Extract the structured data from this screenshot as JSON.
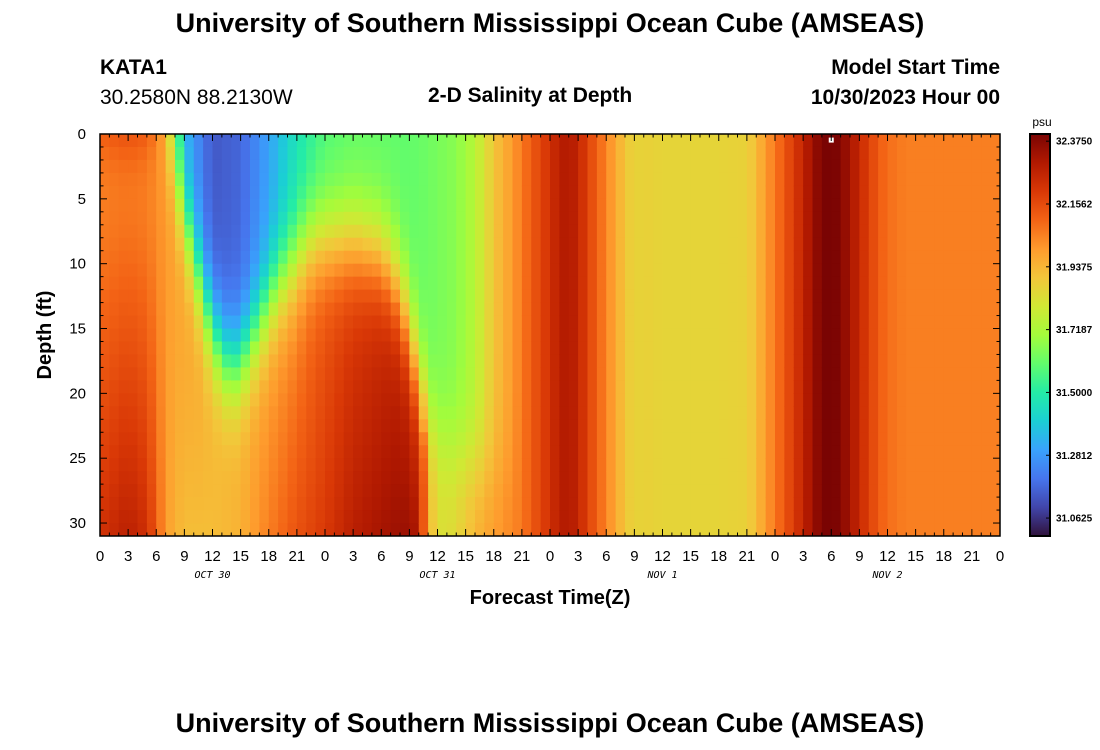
{
  "page": {
    "title": "University of Southern Mississippi Ocean Cube (AMSEAS)",
    "title_repeat": "University of Southern Mississippi Ocean Cube (AMSEAS)",
    "station_id": "KATA1",
    "station_coords": "30.2580N  88.2130W",
    "chart_heading": "2-D Salinity at Depth",
    "model_start_label": "Model Start Time",
    "model_start_value": "10/30/2023 Hour 00"
  },
  "colors": {
    "colormap": [
      "#30123b",
      "#4145ab",
      "#4675ed",
      "#39a2fc",
      "#1bcfd4",
      "#24eca6",
      "#61fc6c",
      "#a4fc3b",
      "#d1e834",
      "#f3c63a",
      "#fe9b2d",
      "#f36315",
      "#d93806",
      "#b11901",
      "#7a0403"
    ],
    "marker": "#ffffff"
  },
  "chart_data": {
    "type": "heatmap",
    "title": "2-D Salinity at Depth",
    "xlabel": "Forecast Time(Z)",
    "ylabel": "Depth (ft)",
    "x_unit": "hours since model start",
    "x_range": [
      0,
      96
    ],
    "x_ticks": [
      0,
      3,
      6,
      9,
      12,
      15,
      18,
      21,
      24,
      27,
      30,
      33,
      36,
      39,
      42,
      45,
      48,
      51,
      54,
      57,
      60,
      63,
      66,
      69,
      72,
      75,
      78,
      81,
      84,
      87,
      90,
      93,
      96
    ],
    "x_tick_labels": [
      "0",
      "3",
      "6",
      "9",
      "12",
      "15",
      "18",
      "21",
      "0",
      "3",
      "6",
      "9",
      "12",
      "15",
      "18",
      "21",
      "0",
      "3",
      "6",
      "9",
      "12",
      "15",
      "18",
      "21",
      "0",
      "3",
      "6",
      "9",
      "12",
      "15",
      "18",
      "21",
      "0"
    ],
    "day_labels": [
      {
        "hour": 12,
        "text": "OCT 30"
      },
      {
        "hour": 36,
        "text": "OCT 31"
      },
      {
        "hour": 60,
        "text": "NOV 1"
      },
      {
        "hour": 84,
        "text": "NOV 2"
      }
    ],
    "y_range": [
      0,
      31
    ],
    "y_ticks": [
      0,
      5,
      10,
      15,
      20,
      25,
      30
    ],
    "colorbar": {
      "unit": "psu",
      "vmin": 31.0,
      "vmax": 32.4,
      "ticks": [
        32.375,
        32.1562,
        31.9375,
        31.7187,
        31.5,
        31.2812,
        31.0625
      ],
      "tick_labels": [
        "32.3750",
        "32.1562",
        "31.9375",
        "31.7187",
        "31.5000",
        "31.2812",
        "31.0625"
      ]
    },
    "marker": {
      "hour": 78,
      "depth": 0.2
    },
    "surface_profile": {
      "hours": [
        0,
        3,
        5,
        6,
        7,
        7.5,
        9,
        12,
        15,
        18,
        21,
        24,
        27,
        30,
        33,
        35,
        38,
        40,
        42,
        44,
        45,
        46,
        48,
        49,
        50,
        51,
        52,
        54,
        56,
        57,
        58,
        60,
        63,
        66,
        69,
        70,
        71,
        72,
        73,
        75,
        76,
        77,
        78,
        79,
        80,
        81,
        83,
        84,
        86,
        90,
        96
      ],
      "values": [
        32.22,
        32.28,
        32.23,
        32.1,
        31.92,
        31.75,
        31.33,
        31.14,
        31.17,
        31.3,
        31.46,
        31.57,
        31.6,
        31.6,
        31.6,
        31.62,
        31.66,
        31.74,
        31.9,
        32.0,
        32.06,
        32.12,
        32.22,
        32.28,
        32.3,
        32.26,
        32.18,
        32.04,
        31.9,
        31.86,
        31.87,
        31.86,
        31.86,
        31.86,
        31.87,
        31.92,
        32.0,
        32.06,
        32.13,
        32.26,
        32.34,
        32.39,
        32.41,
        32.38,
        32.32,
        32.25,
        32.12,
        32.08,
        32.05,
        32.05,
        32.05
      ]
    },
    "bottom_profile": {
      "hours": [
        0,
        3,
        5,
        6,
        7,
        8,
        9,
        12,
        15,
        18,
        21,
        24,
        27,
        30,
        32,
        33,
        34,
        35,
        36,
        37,
        38,
        39,
        40,
        42,
        44,
        45,
        46,
        48,
        49,
        50,
        51,
        52,
        54,
        56,
        57,
        58,
        60,
        63,
        66,
        69,
        70,
        71,
        72,
        73,
        75,
        76,
        77,
        78,
        79,
        80,
        81,
        83,
        84,
        86,
        90,
        96
      ],
      "values": [
        32.22,
        32.28,
        32.23,
        32.12,
        32.0,
        31.95,
        31.92,
        31.92,
        31.95,
        32.05,
        32.14,
        32.2,
        32.28,
        32.32,
        32.34,
        32.34,
        32.3,
        31.96,
        31.84,
        31.83,
        31.86,
        31.9,
        31.95,
        32.0,
        32.04,
        32.06,
        32.12,
        32.22,
        32.28,
        32.3,
        32.26,
        32.18,
        32.04,
        31.9,
        31.86,
        31.87,
        31.86,
        31.86,
        31.86,
        31.87,
        31.92,
        32.0,
        32.06,
        32.13,
        32.26,
        32.34,
        32.39,
        32.41,
        32.38,
        32.32,
        32.25,
        32.12,
        32.08,
        32.05,
        32.05,
        32.05
      ]
    },
    "boundary_depth": {
      "hours": [
        0,
        6,
        7,
        8,
        9,
        10,
        11,
        12,
        13,
        14,
        15,
        16,
        17,
        18,
        19,
        20,
        21,
        22,
        23,
        24,
        27,
        30,
        32,
        33,
        34,
        34.5,
        35,
        36,
        37,
        38,
        39,
        40,
        42,
        96
      ],
      "depths": [
        0,
        0,
        0.6,
        3.5,
        6.5,
        9.5,
        12.5,
        15,
        17,
        18,
        17.5,
        16,
        14.5,
        13,
        11.5,
        10.5,
        9.5,
        8.5,
        8,
        8,
        8,
        9,
        12,
        15,
        18.5,
        20.5,
        22,
        23,
        24,
        24.5,
        25,
        25.5,
        26,
        26
      ]
    },
    "lower_layer_profile": {
      "hours": [
        0,
        10,
        12,
        15,
        18,
        20,
        21,
        22,
        24,
        27,
        30,
        32,
        34,
        35,
        96
      ],
      "values": [
        32.0,
        32.0,
        31.95,
        31.95,
        31.98,
        32.0,
        32.02,
        32.06,
        32.12,
        32.18,
        32.22,
        32.25,
        32.2,
        32.15,
        32.15
      ]
    }
  }
}
